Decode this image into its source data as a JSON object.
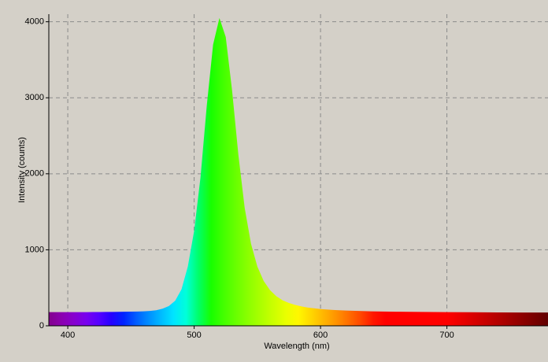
{
  "chart_data": {
    "type": "area",
    "xlabel": "Wavelength (nm)",
    "ylabel": "Intensity (counts)",
    "x": [
      385,
      390,
      395,
      400,
      405,
      410,
      415,
      420,
      425,
      430,
      435,
      440,
      445,
      450,
      455,
      460,
      465,
      470,
      475,
      480,
      485,
      490,
      495,
      500,
      505,
      510,
      515,
      520,
      525,
      530,
      535,
      540,
      545,
      550,
      555,
      560,
      565,
      570,
      575,
      580,
      585,
      590,
      595,
      600,
      610,
      620,
      630,
      640,
      660,
      680,
      700,
      720,
      740,
      760,
      780
    ],
    "series": [
      {
        "values": [
          180,
          180,
          180,
          180,
          180,
          180,
          180,
          181,
          181,
          182,
          183,
          184,
          185,
          186,
          188,
          190,
          195,
          205,
          225,
          260,
          330,
          480,
          780,
          1250,
          1950,
          2900,
          3700,
          4050,
          3800,
          3100,
          2250,
          1550,
          1080,
          780,
          590,
          470,
          390,
          335,
          300,
          275,
          255,
          240,
          230,
          220,
          208,
          200,
          195,
          190,
          185,
          182,
          180,
          178,
          176,
          175,
          175
        ]
      }
    ],
    "xlim": [
      385,
      780
    ],
    "ylim": [
      0,
      4100
    ],
    "xticks": [
      400,
      500,
      600,
      700
    ],
    "yticks": [
      0,
      1000,
      2000,
      3000,
      4000
    ],
    "grid": true
  }
}
